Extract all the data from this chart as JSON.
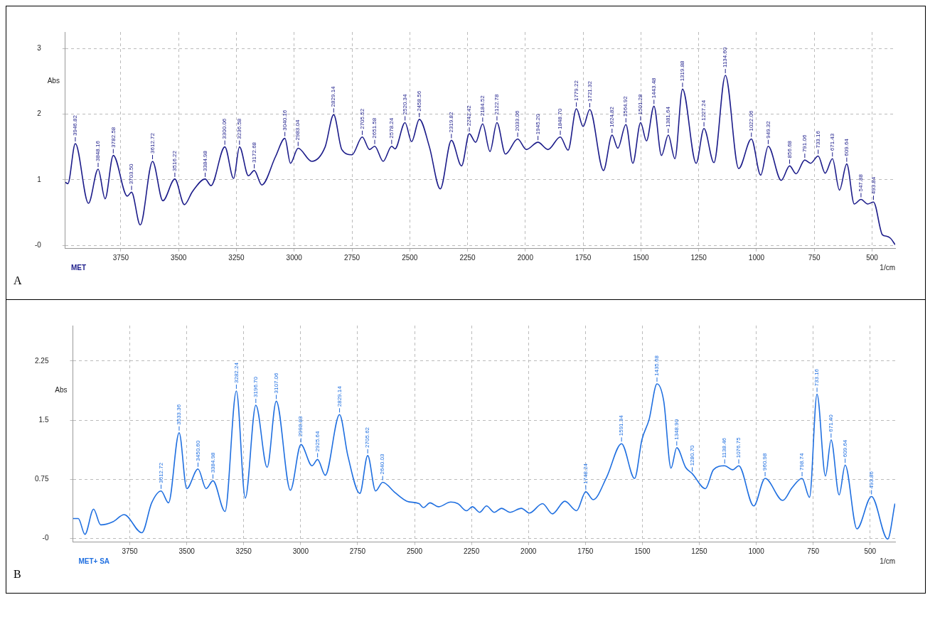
{
  "chart_data": [
    {
      "type": "line",
      "title": "A",
      "xlabel": "1/cm",
      "ylabel": "Abs",
      "grid": true,
      "xlim": [
        3990,
        400
      ],
      "xticks": [
        3750,
        3500,
        3250,
        3000,
        2750,
        2500,
        2250,
        2000,
        1750,
        1500,
        1250,
        1000,
        750,
        500
      ],
      "ylim": [
        -0.05,
        3.25
      ],
      "yticks": [
        {
          "value": 0,
          "label": "-0"
        },
        1,
        2,
        3
      ],
      "series": [
        {
          "name": "MET",
          "color": "#1c1c8a",
          "x": [
            3990,
            3979,
            3946.82,
            3890,
            3848.16,
            3818,
            3782.58,
            3722,
            3703.5,
            3666,
            3612.72,
            3568,
            3516.22,
            3475,
            3440,
            3384.98,
            3360,
            3300.06,
            3262,
            3236.58,
            3198,
            3172.68,
            3140,
            3081,
            3040.16,
            3016,
            2983.04,
            2924,
            2866,
            2829.14,
            2794,
            2750,
            2705.52,
            2674,
            2651.58,
            2615,
            2578.24,
            2564,
            2520.34,
            2492,
            2458.56,
            2415,
            2368,
            2319.82,
            2276,
            2242.42,
            2215,
            2184.52,
            2153,
            2122.78,
            2086,
            2033.06,
            1996,
            1945.2,
            1902,
            1848.7,
            1815,
            1779.22,
            1750,
            1721.32,
            1662,
            1624.82,
            1600,
            1564.92,
            1535,
            1501.28,
            1476,
            1443.48,
            1411,
            1381.64,
            1353,
            1319.88,
            1261,
            1227.24,
            1184,
            1134.6,
            1077,
            1022.06,
            982,
            949.32,
            893,
            856.68,
            829,
            791.06,
            766,
            733.16,
            703,
            671.43,
            641,
            609.64,
            577,
            547.88,
            519,
            493.84,
            455,
            438,
            421,
            400
          ],
          "values": [
            0.96,
            0.94,
            1.55,
            0.64,
            1.16,
            0.71,
            1.37,
            0.75,
            0.81,
            0.31,
            1.28,
            0.68,
            1.01,
            0.62,
            0.82,
            1.01,
            0.91,
            1.5,
            1.02,
            1.5,
            1.06,
            1.14,
            0.92,
            1.35,
            1.63,
            1.25,
            1.48,
            1.28,
            1.5,
            1.99,
            1.46,
            1.38,
            1.65,
            1.46,
            1.51,
            1.28,
            1.51,
            1.47,
            1.87,
            1.58,
            1.92,
            1.5,
            0.86,
            1.6,
            1.21,
            1.7,
            1.57,
            1.85,
            1.43,
            1.87,
            1.39,
            1.62,
            1.46,
            1.57,
            1.46,
            1.65,
            1.45,
            2.08,
            1.81,
            2.07,
            1.14,
            1.68,
            1.48,
            1.84,
            1.25,
            1.87,
            1.59,
            2.12,
            1.37,
            1.68,
            1.32,
            2.38,
            1.25,
            1.78,
            1.26,
            2.59,
            1.17,
            1.62,
            1.07,
            1.51,
            0.99,
            1.21,
            1.09,
            1.3,
            1.25,
            1.36,
            1.1,
            1.32,
            0.84,
            1.24,
            0.63,
            0.7,
            0.63,
            0.66,
            0.16,
            0.14,
            0.11,
            0.01
          ]
        }
      ],
      "annotations": [
        {
          "text": "3946.82",
          "x": 3946.82,
          "y": 1.55
        },
        {
          "text": "3848.16",
          "x": 3848.16,
          "y": 1.16
        },
        {
          "text": "3782.58",
          "x": 3782.58,
          "y": 1.37
        },
        {
          "text": "3703.50",
          "x": 3703.5,
          "y": 0.81
        },
        {
          "text": "3612.72",
          "x": 3612.72,
          "y": 1.28
        },
        {
          "text": "3516.22",
          "x": 3516.22,
          "y": 1.01
        },
        {
          "text": "3384.98",
          "x": 3384.98,
          "y": 1.01
        },
        {
          "text": "3300.06",
          "x": 3300.06,
          "y": 1.5
        },
        {
          "text": "3236.58",
          "x": 3236.58,
          "y": 1.5
        },
        {
          "text": "3172.68",
          "x": 3172.68,
          "y": 1.14
        },
        {
          "text": "3040.16",
          "x": 3040.16,
          "y": 1.63
        },
        {
          "text": "2983.04",
          "x": 2983.04,
          "y": 1.48
        },
        {
          "text": "2829.14",
          "x": 2829.14,
          "y": 1.99
        },
        {
          "text": "2705.52",
          "x": 2705.52,
          "y": 1.65
        },
        {
          "text": "2651.58",
          "x": 2651.58,
          "y": 1.51
        },
        {
          "text": "2578.24",
          "x": 2578.24,
          "y": 1.51
        },
        {
          "text": "2520.34",
          "x": 2520.34,
          "y": 1.87
        },
        {
          "text": "2458.56",
          "x": 2458.56,
          "y": 1.92
        },
        {
          "text": "2319.82",
          "x": 2319.82,
          "y": 1.6
        },
        {
          "text": "2242.42",
          "x": 2242.42,
          "y": 1.7
        },
        {
          "text": "2184.52",
          "x": 2184.52,
          "y": 1.85
        },
        {
          "text": "2122.78",
          "x": 2122.78,
          "y": 1.87
        },
        {
          "text": "2033.06",
          "x": 2033.06,
          "y": 1.62
        },
        {
          "text": "1945.20",
          "x": 1945.2,
          "y": 1.57
        },
        {
          "text": "1848.70",
          "x": 1848.7,
          "y": 1.65
        },
        {
          "text": "1779.22",
          "x": 1779.22,
          "y": 2.08
        },
        {
          "text": "1721.32",
          "x": 1721.32,
          "y": 2.07
        },
        {
          "text": "1624.82",
          "x": 1624.82,
          "y": 1.68
        },
        {
          "text": "1564.92",
          "x": 1564.92,
          "y": 1.84
        },
        {
          "text": "1501.28",
          "x": 1501.28,
          "y": 1.87
        },
        {
          "text": "1443.48",
          "x": 1443.48,
          "y": 2.12
        },
        {
          "text": "1381.64",
          "x": 1381.64,
          "y": 1.68
        },
        {
          "text": "1319.88",
          "x": 1319.88,
          "y": 2.38
        },
        {
          "text": "1227.24",
          "x": 1227.24,
          "y": 1.78
        },
        {
          "text": "1134.60",
          "x": 1134.6,
          "y": 2.59
        },
        {
          "text": "1022.06",
          "x": 1022.06,
          "y": 1.62
        },
        {
          "text": "949.32",
          "x": 949.32,
          "y": 1.51
        },
        {
          "text": "856.68",
          "x": 856.68,
          "y": 1.21
        },
        {
          "text": "791.06",
          "x": 791.06,
          "y": 1.3
        },
        {
          "text": "733.16",
          "x": 733.16,
          "y": 1.36
        },
        {
          "text": "671.43",
          "x": 671.43,
          "y": 1.32
        },
        {
          "text": "609.64",
          "x": 609.64,
          "y": 1.24
        },
        {
          "text": "547.88",
          "x": 547.88,
          "y": 0.7
        },
        {
          "text": "493.84",
          "x": 493.84,
          "y": 0.66
        }
      ]
    },
    {
      "type": "line",
      "title": "B",
      "xlabel": "1/cm",
      "ylabel": "Abs",
      "grid": true,
      "xlim": [
        4000,
        390
      ],
      "xticks": [
        3750,
        3500,
        3250,
        3000,
        2750,
        2500,
        2250,
        2000,
        1750,
        1500,
        1250,
        1000,
        750,
        500
      ],
      "ylim": [
        -0.05,
        2.7
      ],
      "yticks": [
        {
          "value": 0,
          "label": "-0"
        },
        0.75,
        1.5,
        2.25
      ],
      "series": [
        {
          "name": "MET+ SA",
          "color": "#1f6fe0",
          "x": [
            4000,
            3976,
            3947,
            3909,
            3878,
            3824,
            3775,
            3697,
            3654,
            3612.72,
            3580,
            3533.36,
            3500,
            3450.6,
            3415,
            3384.98,
            3332,
            3282.24,
            3243,
            3196.7,
            3147,
            3107.06,
            3045,
            2998.83,
            2950,
            2925.64,
            2892,
            2829.14,
            2793,
            2740,
            2705.62,
            2671,
            2640.03,
            2586,
            2533,
            2480,
            2461,
            2432,
            2395,
            2341,
            2310,
            2272,
            2246,
            2214,
            2184,
            2150,
            2118,
            2081,
            2031,
            1996,
            1938,
            1895,
            1840,
            1789,
            1748.24,
            1716,
            1656,
            1591.34,
            1534,
            1502,
            1470,
            1435.68,
            1406,
            1374,
            1348.9,
            1310,
            1280.7,
            1223,
            1188,
            1138.46,
            1103,
            1076.75,
            1011,
            960.98,
            883,
            843,
            798.74,
            766,
            733.16,
            696,
            671.4,
            636,
            609.64,
            558,
            493.86,
            423,
            391
          ],
          "values": [
            0.25,
            0.25,
            0.05,
            0.37,
            0.17,
            0.21,
            0.3,
            0.07,
            0.45,
            0.6,
            0.45,
            1.34,
            0.63,
            0.88,
            0.63,
            0.73,
            0.34,
            1.87,
            0.51,
            1.69,
            0.9,
            1.74,
            0.61,
            1.19,
            0.92,
            1.0,
            0.8,
            1.57,
            1.05,
            0.57,
            1.05,
            0.6,
            0.71,
            0.58,
            0.47,
            0.44,
            0.39,
            0.45,
            0.4,
            0.46,
            0.44,
            0.35,
            0.4,
            0.33,
            0.41,
            0.33,
            0.38,
            0.33,
            0.38,
            0.32,
            0.44,
            0.31,
            0.47,
            0.35,
            0.59,
            0.49,
            0.78,
            1.2,
            0.76,
            1.25,
            1.51,
            1.96,
            1.74,
            0.89,
            1.15,
            0.9,
            0.82,
            0.63,
            0.87,
            0.92,
            0.87,
            0.92,
            0.41,
            0.76,
            0.48,
            0.64,
            0.76,
            0.52,
            1.83,
            0.79,
            1.25,
            0.55,
            0.93,
            0.12,
            0.53,
            -0.01,
            0.44
          ]
        }
      ],
      "annotations": [
        {
          "text": "3612.72",
          "x": 3612.72,
          "y": 0.6
        },
        {
          "text": "3533.36",
          "x": 3533.36,
          "y": 1.34
        },
        {
          "text": "3450.60",
          "x": 3450.6,
          "y": 0.88
        },
        {
          "text": "3384.98",
          "x": 3384.98,
          "y": 0.73
        },
        {
          "text": "3282.24",
          "x": 3282.24,
          "y": 1.87
        },
        {
          "text": "3196.70",
          "x": 3196.7,
          "y": 1.69
        },
        {
          "text": "3107.06",
          "x": 3107.06,
          "y": 1.74
        },
        {
          "text": "2998.83",
          "x": 2998.83,
          "y": 1.19
        },
        {
          "text": "2925.64",
          "x": 2925.64,
          "y": 1.0
        },
        {
          "text": "2829.14",
          "x": 2829.14,
          "y": 1.57
        },
        {
          "text": "2705.62",
          "x": 2705.62,
          "y": 1.05
        },
        {
          "text": "2640.03",
          "x": 2640.03,
          "y": 0.71
        },
        {
          "text": "1748.24",
          "x": 1748.24,
          "y": 0.59
        },
        {
          "text": "1591.34",
          "x": 1591.34,
          "y": 1.2
        },
        {
          "text": "1435.68",
          "x": 1435.68,
          "y": 1.96
        },
        {
          "text": "1348.90",
          "x": 1348.9,
          "y": 1.15
        },
        {
          "text": "1280.70",
          "x": 1280.7,
          "y": 0.82
        },
        {
          "text": "1138.46",
          "x": 1138.46,
          "y": 0.92
        },
        {
          "text": "1076.75",
          "x": 1076.75,
          "y": 0.92
        },
        {
          "text": "960.98",
          "x": 960.98,
          "y": 0.76
        },
        {
          "text": "798.74",
          "x": 798.74,
          "y": 0.76
        },
        {
          "text": "733.16",
          "x": 733.16,
          "y": 1.83
        },
        {
          "text": "671.40",
          "x": 671.4,
          "y": 1.25
        },
        {
          "text": "609.64",
          "x": 609.64,
          "y": 0.93
        },
        {
          "text": "493.86",
          "x": 493.86,
          "y": 0.53
        }
      ]
    }
  ]
}
